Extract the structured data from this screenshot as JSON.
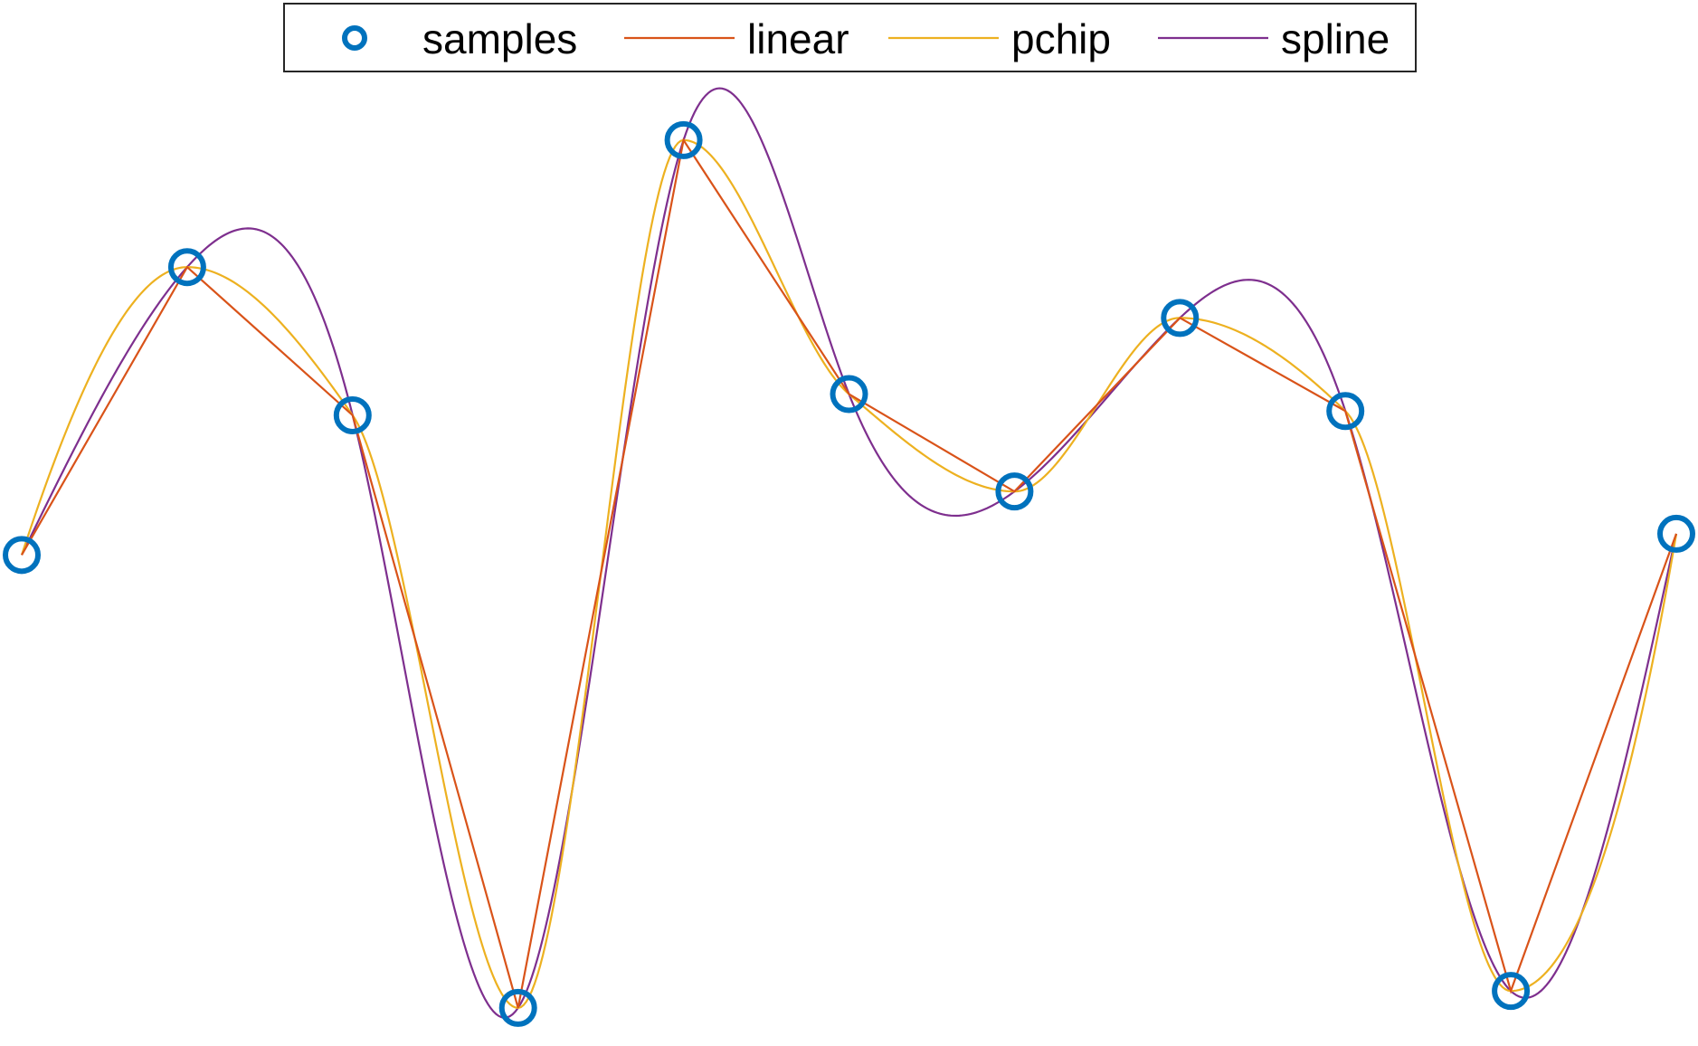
{
  "chart_data": {
    "type": "line",
    "title": "",
    "xlabel": "",
    "ylabel": "",
    "xlim": [
      1,
      11
    ],
    "ylim": [
      -0.95,
      1.35
    ],
    "axes_visible": false,
    "grid": false,
    "legend_position": "top-center",
    "x": [
      1,
      2,
      3,
      4,
      5,
      6,
      7,
      8,
      9,
      10,
      11
    ],
    "series": [
      {
        "name": "samples",
        "kind": "markers",
        "color": "#0072BD",
        "values": [
          0.21,
          0.89,
          0.54,
          -0.86,
          1.19,
          0.59,
          0.36,
          0.77,
          0.55,
          -0.82,
          0.26
        ]
      },
      {
        "name": "linear",
        "kind": "linear",
        "color": "#D95319",
        "values": [
          0.21,
          0.89,
          0.54,
          -0.86,
          1.19,
          0.59,
          0.36,
          0.77,
          0.55,
          -0.82,
          0.26
        ]
      },
      {
        "name": "pchip",
        "kind": "pchip",
        "color": "#EDB120",
        "values": [
          0.21,
          0.89,
          0.54,
          -0.86,
          1.19,
          0.59,
          0.36,
          0.77,
          0.55,
          -0.82,
          0.26
        ]
      },
      {
        "name": "spline",
        "kind": "spline",
        "color": "#7E2F8E",
        "values": [
          0.21,
          0.89,
          0.54,
          -0.86,
          1.19,
          0.59,
          0.36,
          0.77,
          0.55,
          -0.82,
          0.26
        ]
      }
    ]
  }
}
